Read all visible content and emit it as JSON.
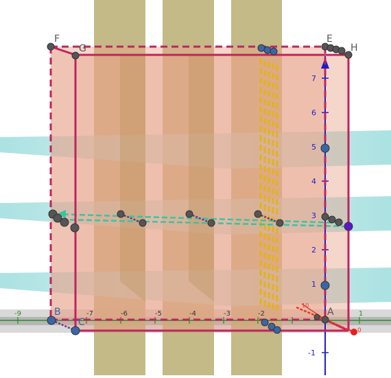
{
  "view": {
    "kind": "3D graphics view",
    "colors": {
      "background": "#ffffff",
      "box_fill": "#e8a58a",
      "box_edge": "#c0245c",
      "vertical_planes": "#b9ae72",
      "horizontal_planes": "#8fd8d8",
      "z_axis": "#1d1dcc",
      "x_axis": "#2a8a2a",
      "ground": "#9a9a9a",
      "slice_lines": "#38c4a4",
      "yellow_bars": "#e2b320",
      "points": "#555555"
    }
  },
  "vertex_labels": {
    "F": "F",
    "G": "G",
    "E": "E",
    "H": "H",
    "A": "A",
    "B": "B",
    "C": "C"
  },
  "x_axis_ticks": [
    "-9",
    "-7",
    "-6",
    "-5",
    "-4",
    "-3",
    "-2",
    "1"
  ],
  "z_axis_ticks": [
    "7",
    "6",
    "5",
    "4",
    "3",
    "2",
    "1",
    "-1"
  ],
  "small_red_labels": {
    "near_A_top": "0",
    "near_A_small": "10"
  }
}
